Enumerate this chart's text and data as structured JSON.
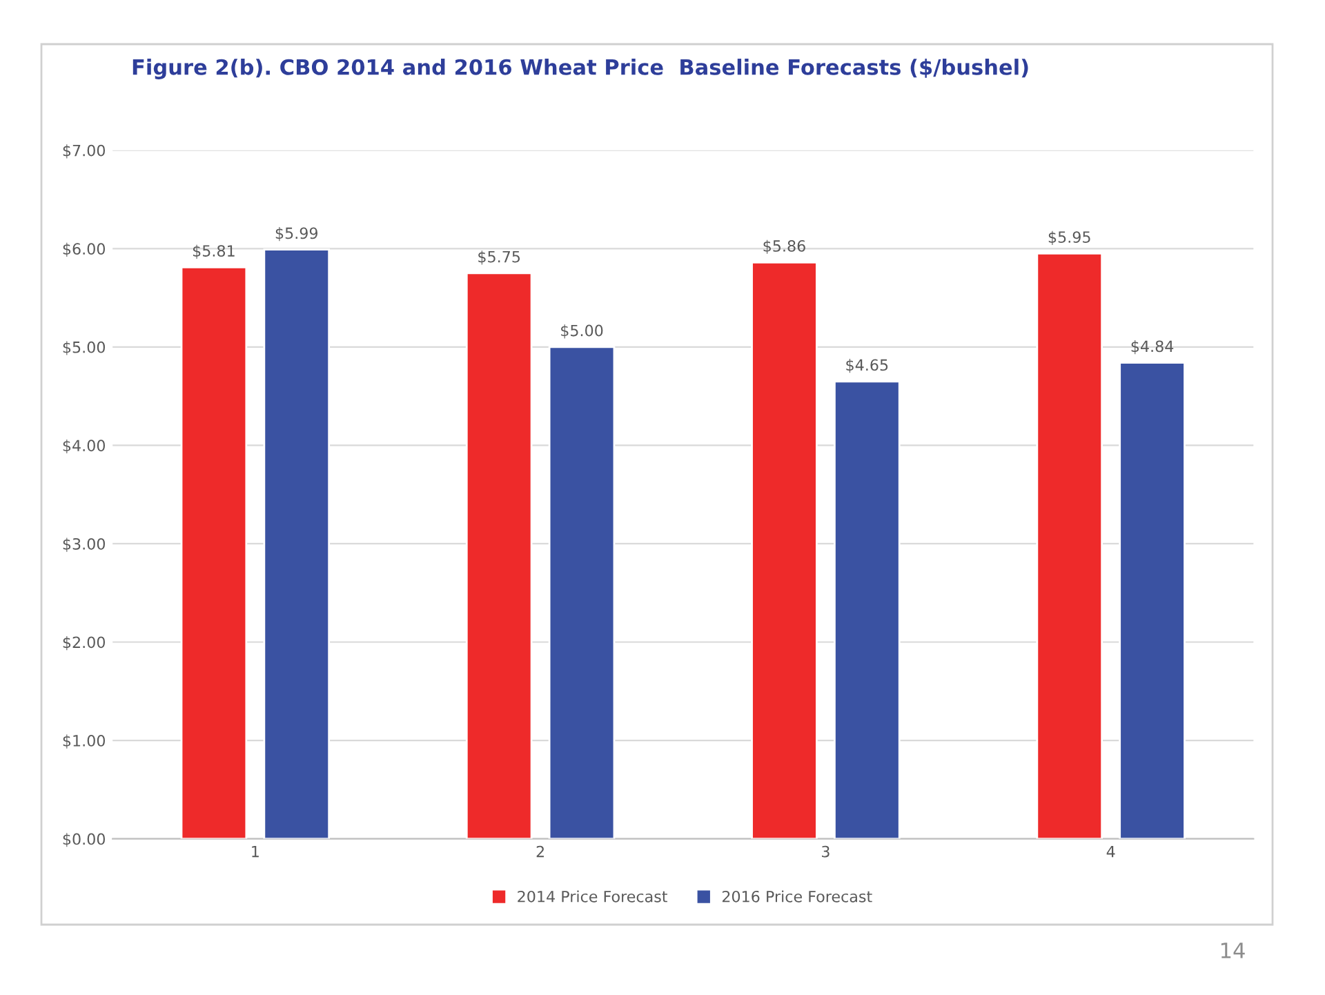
{
  "chart_data": {
    "type": "bar",
    "title": "Figure 2(b). CBO 2014 and 2016 Wheat Price  Baseline Forecasts ($/bushel)",
    "categories": [
      "1",
      "2",
      "3",
      "4"
    ],
    "series": [
      {
        "name": "2014 Price Forecast",
        "color": "#ee2a2a",
        "values": [
          5.81,
          5.75,
          5.86,
          5.95
        ],
        "value_labels": [
          "$5.81",
          "$5.75",
          "$5.86",
          "$5.95"
        ]
      },
      {
        "name": "2016 Price Forecast",
        "color": "#3a52a2",
        "values": [
          5.99,
          5.0,
          4.65,
          4.84
        ],
        "value_labels": [
          "$5.99",
          "$5.00",
          "$4.65",
          "$4.84"
        ]
      }
    ],
    "ylim": [
      0,
      7
    ],
    "yticks": [
      {
        "value": 0,
        "label": "$0.00"
      },
      {
        "value": 1,
        "label": "$1.00"
      },
      {
        "value": 2,
        "label": "$2.00"
      },
      {
        "value": 3,
        "label": "$3.00"
      },
      {
        "value": 4,
        "label": "$4.00"
      },
      {
        "value": 5,
        "label": "$5.00"
      },
      {
        "value": 6,
        "label": "$6.00"
      },
      {
        "value": 7,
        "label": "$7.00"
      }
    ],
    "grid": "y",
    "legend": "bottom",
    "annotations": [
      "14"
    ]
  }
}
